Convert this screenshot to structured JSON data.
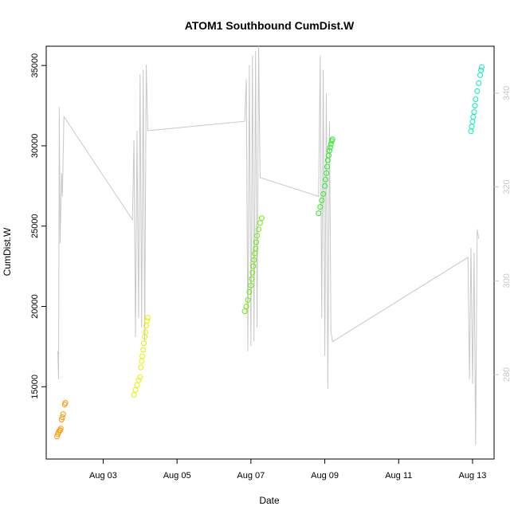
{
  "chart_data": {
    "type": "scatter",
    "title": "ATOM1 Southbound CumDist.W",
    "xlabel": "Date",
    "ylabel": "CumDist.W",
    "xlim": [
      "2023-08-01T11:00",
      "2023-08-13T14:00"
    ],
    "ylim": [
      10500,
      36200
    ],
    "x_ticks": [
      "Aug 03",
      "Aug 05",
      "Aug 07",
      "Aug 09",
      "Aug 11",
      "Aug 13"
    ],
    "y_ticks": [
      15000,
      20000,
      25000,
      30000,
      35000
    ],
    "right_axis": {
      "ylim": [
        262,
        350
      ],
      "ticks": [
        280,
        300,
        320,
        340
      ],
      "color": "#c8c8c8"
    },
    "grid": false,
    "series": [
      {
        "marker": "open-circle",
        "color": "#ff9900",
        "points": [
          [
            "2023-08-01T18:00",
            11900
          ],
          [
            "2023-08-01T18:30",
            12050
          ],
          [
            "2023-08-01T19:00",
            12150
          ],
          [
            "2023-08-01T19:30",
            12250
          ],
          [
            "2023-08-01T20:00",
            12300
          ],
          [
            "2023-08-01T20:30",
            12400
          ],
          [
            "2023-08-01T21:00",
            12950
          ],
          [
            "2023-08-01T21:30",
            13100
          ],
          [
            "2023-08-01T22:00",
            13300
          ],
          [
            "2023-08-01T23:00",
            13900
          ],
          [
            "2023-08-01T23:30",
            14000
          ]
        ]
      },
      {
        "marker": "open-circle",
        "color": "#e6f000",
        "points": [
          [
            "2023-08-03T20:00",
            14500
          ],
          [
            "2023-08-03T21:00",
            14800
          ],
          [
            "2023-08-03T22:00",
            15100
          ],
          [
            "2023-08-03T23:00",
            15400
          ],
          [
            "2023-08-04T00:00",
            15600
          ],
          [
            "2023-08-04T00:30",
            16200
          ],
          [
            "2023-08-04T01:00",
            16600
          ],
          [
            "2023-08-04T01:30",
            16900
          ],
          [
            "2023-08-04T02:00",
            17300
          ],
          [
            "2023-08-04T02:30",
            17700
          ],
          [
            "2023-08-04T03:00",
            18100
          ],
          [
            "2023-08-04T03:30",
            18400
          ],
          [
            "2023-08-04T04:00",
            18800
          ],
          [
            "2023-08-04T04:30",
            19100
          ],
          [
            "2023-08-04T05:00",
            19300
          ]
        ]
      },
      {
        "marker": "open-circle",
        "color": "#66ee00",
        "points": [
          [
            "2023-08-06T20:00",
            19700
          ],
          [
            "2023-08-06T21:00",
            20000
          ],
          [
            "2023-08-06T22:00",
            20400
          ],
          [
            "2023-08-06T23:00",
            20900
          ],
          [
            "2023-08-07T00:00",
            21300
          ],
          [
            "2023-08-07T00:30",
            21700
          ],
          [
            "2023-08-07T01:00",
            22100
          ],
          [
            "2023-08-07T01:30",
            22500
          ],
          [
            "2023-08-07T02:00",
            22900
          ],
          [
            "2023-08-07T02:30",
            23300
          ],
          [
            "2023-08-07T03:00",
            23600
          ],
          [
            "2023-08-07T03:30",
            24000
          ],
          [
            "2023-08-07T04:00",
            24400
          ],
          [
            "2023-08-07T05:00",
            24800
          ],
          [
            "2023-08-07T06:00",
            25200
          ],
          [
            "2023-08-07T07:00",
            25500
          ]
        ]
      },
      {
        "marker": "open-circle",
        "color": "#22ee22",
        "points": [
          [
            "2023-08-08T20:00",
            25800
          ],
          [
            "2023-08-08T21:00",
            26200
          ],
          [
            "2023-08-08T22:00",
            26600
          ],
          [
            "2023-08-08T23:00",
            27000
          ],
          [
            "2023-08-09T00:00",
            27500
          ],
          [
            "2023-08-09T00:30",
            27900
          ],
          [
            "2023-08-09T01:00",
            28300
          ],
          [
            "2023-08-09T01:30",
            28700
          ],
          [
            "2023-08-09T02:00",
            29100
          ],
          [
            "2023-08-09T02:30",
            29400
          ],
          [
            "2023-08-09T03:00",
            29700
          ],
          [
            "2023-08-09T03:30",
            29900
          ],
          [
            "2023-08-09T04:00",
            30100
          ],
          [
            "2023-08-09T04:30",
            30300
          ],
          [
            "2023-08-09T05:00",
            30400
          ]
        ]
      },
      {
        "marker": "open-circle",
        "color": "#00eebb",
        "points": [
          [
            "2023-08-12T23:00",
            30900
          ],
          [
            "2023-08-12T23:30",
            31200
          ],
          [
            "2023-08-13T00:00",
            31500
          ],
          [
            "2023-08-13T00:30",
            31800
          ],
          [
            "2023-08-13T01:00",
            32100
          ],
          [
            "2023-08-13T01:30",
            32500
          ],
          [
            "2023-08-13T02:00",
            32900
          ],
          [
            "2023-08-13T03:00",
            33400
          ],
          [
            "2023-08-13T04:00",
            33900
          ],
          [
            "2023-08-13T05:00",
            34400
          ],
          [
            "2023-08-13T05:30",
            34700
          ],
          [
            "2023-08-13T06:00",
            34900
          ]
        ]
      },
      {
        "type": "line",
        "axis": "right",
        "color": "#c8c8c8",
        "points": [
          [
            "2023-08-01T18:30",
            285
          ],
          [
            "2023-08-01T19:00",
            279
          ],
          [
            "2023-08-01T19:30",
            337
          ],
          [
            "2023-08-01T20:00",
            308
          ],
          [
            "2023-08-01T21:00",
            323
          ],
          [
            "2023-08-01T21:30",
            318
          ],
          [
            "2023-08-01T22:30",
            335
          ],
          [
            "2023-08-03T19:00",
            313
          ],
          [
            "2023-08-03T20:00",
            330
          ],
          [
            "2023-08-03T21:00",
            288
          ],
          [
            "2023-08-03T22:00",
            332
          ],
          [
            "2023-08-03T23:00",
            292
          ],
          [
            "2023-08-04T00:00",
            344
          ],
          [
            "2023-08-04T01:00",
            290
          ],
          [
            "2023-08-04T02:00",
            345
          ],
          [
            "2023-08-04T03:00",
            287
          ],
          [
            "2023-08-04T04:00",
            346
          ],
          [
            "2023-08-04T05:00",
            332
          ],
          [
            "2023-08-06T20:00",
            334
          ],
          [
            "2023-08-06T21:00",
            343
          ],
          [
            "2023-08-06T22:00",
            285
          ],
          [
            "2023-08-06T23:00",
            346
          ],
          [
            "2023-08-07T00:00",
            286
          ],
          [
            "2023-08-07T01:00",
            348
          ],
          [
            "2023-08-07T02:00",
            287
          ],
          [
            "2023-08-07T03:00",
            349
          ],
          [
            "2023-08-07T04:00",
            290
          ],
          [
            "2023-08-07T05:00",
            350
          ],
          [
            "2023-08-07T06:00",
            322
          ],
          [
            "2023-08-08T20:00",
            318
          ],
          [
            "2023-08-08T21:00",
            348
          ],
          [
            "2023-08-08T22:00",
            292
          ],
          [
            "2023-08-08T23:00",
            345
          ],
          [
            "2023-08-09T00:00",
            284
          ],
          [
            "2023-08-09T01:00",
            340
          ],
          [
            "2023-08-09T02:00",
            277
          ],
          [
            "2023-08-09T03:00",
            334
          ],
          [
            "2023-08-09T04:00",
            289
          ],
          [
            "2023-08-09T05:00",
            287
          ],
          [
            "2023-08-12T21:00",
            305
          ],
          [
            "2023-08-12T22:00",
            279
          ],
          [
            "2023-08-12T23:00",
            307
          ],
          [
            "2023-08-13T00:00",
            278
          ],
          [
            "2023-08-13T01:00",
            306
          ],
          [
            "2023-08-13T02:00",
            265
          ],
          [
            "2023-08-13T03:00",
            311
          ],
          [
            "2023-08-13T04:00",
            309
          ]
        ]
      }
    ]
  }
}
